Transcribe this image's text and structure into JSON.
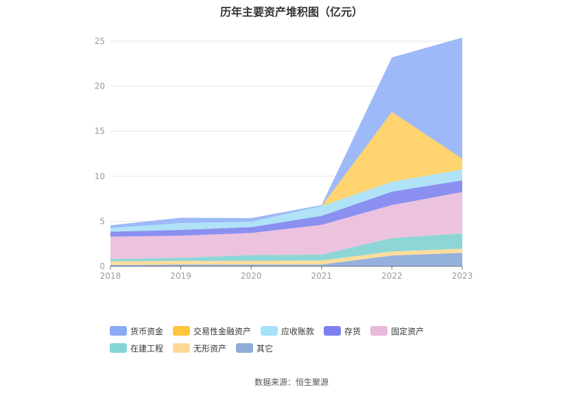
{
  "title": "历年主要资产堆积图（亿元）",
  "source": "数据来源：恒生聚源",
  "chart_data": {
    "type": "area",
    "stacked": true,
    "x": [
      "2018",
      "2019",
      "2020",
      "2021",
      "2022",
      "2023"
    ],
    "ylim": [
      0,
      25
    ],
    "yticks": [
      0,
      5,
      10,
      15,
      20,
      25
    ],
    "grid": true,
    "legend_position": "bottom",
    "series": [
      {
        "name": "其它",
        "color": "#94b0dc",
        "values": [
          0.15,
          0.2,
          0.2,
          0.2,
          1.2,
          1.5
        ]
      },
      {
        "name": "无形资产",
        "color": "#ffdd9b",
        "values": [
          0.4,
          0.4,
          0.4,
          0.45,
          0.45,
          0.45
        ]
      },
      {
        "name": "在建工程",
        "color": "#8ed6d6",
        "values": [
          0.25,
          0.35,
          0.65,
          0.65,
          1.5,
          1.7
        ]
      },
      {
        "name": "固定资产",
        "color": "#ecc3df",
        "values": [
          2.5,
          2.45,
          2.45,
          3.3,
          3.65,
          4.6
        ]
      },
      {
        "name": "存货",
        "color": "#8b90f0",
        "values": [
          0.55,
          0.65,
          0.65,
          1.0,
          1.5,
          1.3
        ]
      },
      {
        "name": "应收账款",
        "color": "#b0e3f8",
        "values": [
          0.4,
          0.75,
          0.6,
          1.1,
          1.1,
          1.2
        ]
      },
      {
        "name": "交易性金融资产",
        "color": "#ffd36f",
        "values": [
          0.0,
          0.0,
          0.0,
          0.0,
          7.75,
          1.2
        ]
      },
      {
        "name": "货币资金",
        "color": "#9db9f8",
        "values": [
          0.3,
          0.6,
          0.4,
          0.1,
          6.05,
          13.45
        ]
      }
    ],
    "legend_order": [
      "货币资金",
      "交易性金融资产",
      "应收账款",
      "存货",
      "固定资产",
      "在建工程",
      "无形资产",
      "其它"
    ],
    "legend_colors": {
      "货币资金": "#8aa9f6",
      "交易性金融资产": "#ffc53d",
      "应收账款": "#a6e1fa",
      "存货": "#7b7ff0",
      "固定资产": "#e8b9d8",
      "在建工程": "#86d5d6",
      "无形资产": "#ffd898",
      "其它": "#8fadd9"
    }
  }
}
